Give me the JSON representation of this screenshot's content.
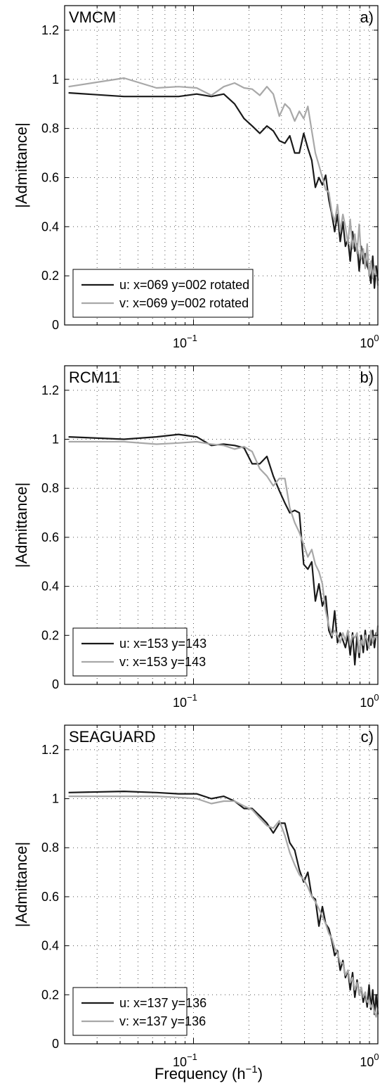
{
  "chart_data": [
    {
      "type": "line",
      "title": "VMCM",
      "panel_label": "a)",
      "ylabel": "|Admittance|",
      "xlabel": "",
      "xscale": "log",
      "xlim": [
        0.02,
        1.0
      ],
      "ylim": [
        0,
        1.3
      ],
      "yticks": [
        "0",
        "0.2",
        "0.4",
        "0.6",
        "0.8",
        "1",
        "1.2"
      ],
      "xticks": [
        {
          "base": "10",
          "exp": "−1"
        },
        {
          "base": "10",
          "exp": "0"
        }
      ],
      "grid": true,
      "legend_position": "bottom-left",
      "series": [
        {
          "name": "u: x=069 y=002 rotated",
          "color": "#1a1a1a",
          "x": [
            0.021,
            0.042,
            0.063,
            0.083,
            0.104,
            0.125,
            0.146,
            0.167,
            0.188,
            0.208,
            0.229,
            0.25,
            0.271,
            0.292,
            0.313,
            0.333,
            0.354,
            0.375,
            0.396,
            0.417,
            0.438,
            0.458,
            0.479,
            0.5,
            0.521,
            0.542,
            0.563,
            0.583,
            0.604,
            0.625,
            0.646,
            0.667,
            0.688,
            0.708,
            0.729,
            0.75,
            0.771,
            0.792,
            0.813,
            0.833,
            0.854,
            0.875,
            0.896,
            0.917,
            0.938,
            0.958,
            0.979,
            1.0
          ],
          "y": [
            0.945,
            0.93,
            0.93,
            0.93,
            0.94,
            0.93,
            0.94,
            0.9,
            0.84,
            0.81,
            0.78,
            0.81,
            0.79,
            0.75,
            0.74,
            0.77,
            0.7,
            0.7,
            0.78,
            0.72,
            0.67,
            0.56,
            0.6,
            0.57,
            0.61,
            0.51,
            0.45,
            0.38,
            0.45,
            0.34,
            0.42,
            0.32,
            0.35,
            0.26,
            0.38,
            0.3,
            0.33,
            0.22,
            0.32,
            0.25,
            0.29,
            0.24,
            0.22,
            0.17,
            0.28,
            0.15,
            0.24,
            0.18
          ]
        },
        {
          "name": "v: x=069 y=002 rotated",
          "color": "#a8a8a8",
          "x": [
            0.021,
            0.042,
            0.063,
            0.083,
            0.104,
            0.125,
            0.146,
            0.167,
            0.188,
            0.208,
            0.229,
            0.25,
            0.271,
            0.292,
            0.313,
            0.333,
            0.354,
            0.375,
            0.396,
            0.417,
            0.438,
            0.458,
            0.479,
            0.5,
            0.521,
            0.542,
            0.563,
            0.583,
            0.604,
            0.625,
            0.646,
            0.667,
            0.688,
            0.708,
            0.729,
            0.75,
            0.771,
            0.792,
            0.813,
            0.833,
            0.854,
            0.875,
            0.896,
            0.917,
            0.938,
            0.958,
            0.979,
            1.0
          ],
          "y": [
            0.97,
            1.005,
            0.965,
            0.97,
            0.965,
            0.935,
            0.97,
            0.985,
            0.965,
            0.96,
            0.935,
            0.97,
            0.94,
            0.85,
            0.9,
            0.88,
            0.83,
            0.87,
            0.84,
            0.89,
            0.79,
            0.7,
            0.65,
            0.6,
            0.55,
            0.54,
            0.46,
            0.42,
            0.49,
            0.38,
            0.45,
            0.4,
            0.33,
            0.43,
            0.31,
            0.37,
            0.29,
            0.41,
            0.27,
            0.31,
            0.23,
            0.33,
            0.2,
            0.26,
            0.19,
            0.24,
            0.2,
            0.16
          ]
        }
      ]
    },
    {
      "type": "line",
      "title": "RCM11",
      "panel_label": "b)",
      "ylabel": "|Admittance|",
      "xlabel": "",
      "xscale": "log",
      "xlim": [
        0.02,
        1.0
      ],
      "ylim": [
        0,
        1.3
      ],
      "yticks": [
        "0",
        "0.2",
        "0.4",
        "0.6",
        "0.8",
        "1",
        "1.2"
      ],
      "xticks": [
        {
          "base": "10",
          "exp": "−1"
        },
        {
          "base": "10",
          "exp": "0"
        }
      ],
      "grid": true,
      "legend_position": "bottom-left",
      "series": [
        {
          "name": "u: x=153 y=143",
          "color": "#1a1a1a",
          "x": [
            0.021,
            0.042,
            0.063,
            0.083,
            0.104,
            0.125,
            0.146,
            0.167,
            0.188,
            0.208,
            0.229,
            0.25,
            0.271,
            0.292,
            0.313,
            0.333,
            0.354,
            0.375,
            0.396,
            0.417,
            0.438,
            0.458,
            0.479,
            0.5,
            0.521,
            0.542,
            0.563,
            0.583,
            0.604,
            0.625,
            0.646,
            0.667,
            0.688,
            0.708,
            0.729,
            0.75,
            0.771,
            0.792,
            0.813,
            0.833,
            0.854,
            0.875,
            0.896,
            0.917,
            0.938,
            0.958,
            0.979,
            1.0
          ],
          "y": [
            1.01,
            1.0,
            1.01,
            1.02,
            1.01,
            0.975,
            0.98,
            0.975,
            0.965,
            0.9,
            0.9,
            0.93,
            0.85,
            0.79,
            0.74,
            0.7,
            0.71,
            0.7,
            0.49,
            0.47,
            0.5,
            0.34,
            0.41,
            0.32,
            0.36,
            0.22,
            0.19,
            0.3,
            0.17,
            0.21,
            0.18,
            0.15,
            0.2,
            0.12,
            0.21,
            0.08,
            0.2,
            0.11,
            0.2,
            0.13,
            0.22,
            0.14,
            0.2,
            0.16,
            0.22,
            0.15,
            0.21,
            0.2
          ]
        },
        {
          "name": "v: x=153 y=143",
          "color": "#a8a8a8",
          "x": [
            0.021,
            0.042,
            0.063,
            0.083,
            0.104,
            0.125,
            0.146,
            0.167,
            0.188,
            0.208,
            0.229,
            0.25,
            0.271,
            0.292,
            0.313,
            0.333,
            0.354,
            0.375,
            0.396,
            0.417,
            0.438,
            0.458,
            0.479,
            0.5,
            0.521,
            0.542,
            0.563,
            0.583,
            0.604,
            0.625,
            0.646,
            0.667,
            0.688,
            0.708,
            0.729,
            0.75,
            0.771,
            0.792,
            0.813,
            0.833,
            0.854,
            0.875,
            0.896,
            0.917,
            0.938,
            0.958,
            0.979,
            1.0
          ],
          "y": [
            0.99,
            0.99,
            0.98,
            0.985,
            0.99,
            0.98,
            0.975,
            0.96,
            0.97,
            0.95,
            0.88,
            0.85,
            0.81,
            0.84,
            0.84,
            0.72,
            0.66,
            0.62,
            0.57,
            0.52,
            0.55,
            0.49,
            0.46,
            0.41,
            0.3,
            0.24,
            0.2,
            0.22,
            0.2,
            0.17,
            0.21,
            0.18,
            0.22,
            0.16,
            0.2,
            0.19,
            0.21,
            0.13,
            0.18,
            0.16,
            0.2,
            0.18,
            0.15,
            0.22,
            0.17,
            0.2,
            0.19,
            0.24
          ]
        }
      ]
    },
    {
      "type": "line",
      "title": "SEAGUARD",
      "panel_label": "c)",
      "ylabel": "|Admittance|",
      "xlabel": "Frequency (h",
      "xlabel_sup": "−1",
      "xlabel_end": ")",
      "xscale": "log",
      "xlim": [
        0.02,
        1.0
      ],
      "ylim": [
        0,
        1.3
      ],
      "yticks": [
        "0",
        "0.2",
        "0.4",
        "0.6",
        "0.8",
        "1",
        "1.2"
      ],
      "xticks": [
        {
          "base": "10",
          "exp": "−1"
        },
        {
          "base": "10",
          "exp": "0"
        }
      ],
      "grid": true,
      "legend_position": "bottom-left",
      "series": [
        {
          "name": "u: x=137 y=136",
          "color": "#1a1a1a",
          "x": [
            0.021,
            0.042,
            0.063,
            0.083,
            0.104,
            0.125,
            0.146,
            0.167,
            0.188,
            0.208,
            0.229,
            0.25,
            0.271,
            0.292,
            0.313,
            0.333,
            0.354,
            0.375,
            0.396,
            0.417,
            0.438,
            0.458,
            0.479,
            0.5,
            0.521,
            0.542,
            0.563,
            0.583,
            0.604,
            0.625,
            0.646,
            0.667,
            0.688,
            0.708,
            0.729,
            0.75,
            0.771,
            0.792,
            0.813,
            0.833,
            0.854,
            0.875,
            0.896,
            0.917,
            0.938,
            0.958,
            0.979,
            1.0
          ],
          "y": [
            1.025,
            1.03,
            1.025,
            1.02,
            1.02,
            1.0,
            1.01,
            0.99,
            0.96,
            0.96,
            0.93,
            0.9,
            0.86,
            0.9,
            0.9,
            0.82,
            0.79,
            0.71,
            0.66,
            0.7,
            0.6,
            0.59,
            0.48,
            0.56,
            0.49,
            0.47,
            0.42,
            0.36,
            0.38,
            0.3,
            0.34,
            0.27,
            0.3,
            0.22,
            0.29,
            0.19,
            0.26,
            0.2,
            0.23,
            0.17,
            0.21,
            0.15,
            0.24,
            0.14,
            0.22,
            0.12,
            0.2,
            0.12
          ]
        },
        {
          "name": "v: x=137 y=136",
          "color": "#a8a8a8",
          "x": [
            0.021,
            0.042,
            0.063,
            0.083,
            0.104,
            0.125,
            0.146,
            0.167,
            0.188,
            0.208,
            0.229,
            0.25,
            0.271,
            0.292,
            0.313,
            0.333,
            0.354,
            0.375,
            0.396,
            0.417,
            0.438,
            0.458,
            0.479,
            0.5,
            0.521,
            0.542,
            0.563,
            0.583,
            0.604,
            0.625,
            0.646,
            0.667,
            0.688,
            0.708,
            0.729,
            0.75,
            0.771,
            0.792,
            0.813,
            0.833,
            0.854,
            0.875,
            0.896,
            0.917,
            0.938,
            0.958,
            0.979,
            1.0
          ],
          "y": [
            1.01,
            1.01,
            1.01,
            1.005,
            1.0,
            0.98,
            0.99,
            0.99,
            0.97,
            0.955,
            0.92,
            0.89,
            0.88,
            0.91,
            0.85,
            0.78,
            0.73,
            0.69,
            0.67,
            0.64,
            0.6,
            0.58,
            0.55,
            0.52,
            0.49,
            0.45,
            0.43,
            0.39,
            0.37,
            0.33,
            0.33,
            0.28,
            0.3,
            0.25,
            0.27,
            0.22,
            0.25,
            0.2,
            0.23,
            0.19,
            0.21,
            0.17,
            0.18,
            0.15,
            0.16,
            0.13,
            0.11,
            0.15
          ]
        }
      ]
    }
  ]
}
